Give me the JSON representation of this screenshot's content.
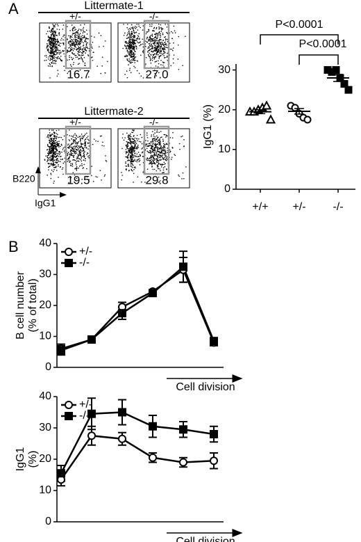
{
  "panel_labels": [
    "A",
    "B"
  ],
  "flow": {
    "groups": [
      {
        "title": "Littermate-1",
        "plots": [
          {
            "label": "+/-",
            "gate": "16.7"
          },
          {
            "label": "-/-",
            "gate": "27.0"
          }
        ]
      },
      {
        "title": "Littermate-2",
        "plots": [
          {
            "label": "+/-",
            "gate": "19.5"
          },
          {
            "label": "-/-",
            "gate": "29.8"
          }
        ]
      }
    ],
    "y_axis": "B220",
    "x_axis": "IgG1"
  },
  "chart_data": [
    {
      "type": "strip",
      "ylabel": "IgG1 (%)",
      "categories": [
        "+/+",
        "+/-",
        "-/-"
      ],
      "markers": [
        "triangle",
        "circle",
        "square"
      ],
      "filled": [
        false,
        false,
        true
      ],
      "color": "#000000",
      "points": [
        [
          19.5,
          19.5,
          20,
          20.5,
          21,
          17.5
        ],
        [
          21,
          20.5,
          19,
          18,
          17.5
        ],
        [
          30,
          29.5,
          30,
          28,
          26.5,
          25
        ]
      ],
      "means": [
        19.5,
        19.6,
        28
      ],
      "sems": [
        0.5,
        0.7,
        0.9
      ],
      "ylim": [
        0,
        31.5
      ],
      "yticks": [
        0,
        10,
        20,
        30
      ],
      "annotations": [
        "P<0.0001",
        "P<0.0001"
      ]
    },
    {
      "type": "line",
      "ylabel": [
        "B cell number",
        "(% of total)"
      ],
      "xlabel": "Cell division",
      "categories": [
        null,
        null,
        null,
        null,
        null,
        null
      ],
      "series": [
        {
          "name": "+/-",
          "marker": "circle",
          "filled": false,
          "color": "#000000",
          "values": [
            6,
            9,
            19.5,
            24.5,
            31.5,
            8
          ],
          "errors": [
            1.5,
            1,
            1.5,
            0.5,
            4,
            1
          ]
        },
        {
          "name": "-/-",
          "marker": "square",
          "filled": true,
          "color": "#000000",
          "values": [
            5.5,
            9,
            17.5,
            24,
            32.5,
            8.5
          ],
          "errors": [
            1.5,
            1,
            2,
            0.5,
            5,
            1
          ]
        }
      ],
      "ylim": [
        0,
        40
      ],
      "yticks": [
        0,
        10,
        20,
        30,
        40
      ]
    },
    {
      "type": "line",
      "ylabel": [
        "IgG1",
        "(%)"
      ],
      "xlabel": "Cell division",
      "categories": [
        null,
        null,
        null,
        null,
        null,
        null
      ],
      "series": [
        {
          "name": "+/-",
          "marker": "circle",
          "filled": false,
          "color": "#000000",
          "values": [
            13.5,
            27.5,
            26.5,
            20.5,
            19,
            19.5
          ],
          "errors": [
            2,
            3,
            2,
            1.5,
            1.5,
            2.5
          ]
        },
        {
          "name": "-/-",
          "marker": "square",
          "filled": true,
          "color": "#000000",
          "values": [
            15.5,
            34.5,
            35,
            30.5,
            29.5,
            28
          ],
          "errors": [
            2.5,
            5,
            4,
            3.5,
            2.5,
            2.5
          ]
        }
      ],
      "ylim": [
        0,
        40
      ],
      "yticks": [
        0,
        10,
        20,
        30,
        40
      ]
    }
  ]
}
